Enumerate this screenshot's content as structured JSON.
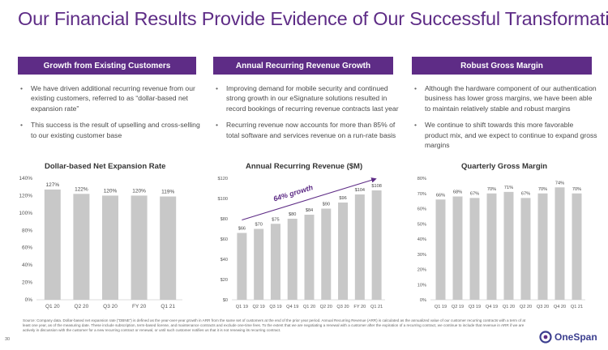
{
  "title": "Our Financial Results Provide Evidence of Our Successful Transformation",
  "panels": [
    {
      "header": "Growth from Existing Customers",
      "bullets": [
        "We have driven additional recurring revenue from our existing customers, referred to as “dollar-based net expansion rate”",
        "This success is the result of upselling and cross-selling to our existing customer base"
      ]
    },
    {
      "header": "Annual Recurring Revenue Growth",
      "bullets": [
        "Improving demand for mobile security and continued strong growth in our eSignature solutions resulted in record bookings of recurring revenue contracts last year",
        "Recurring revenue now accounts for more than 85% of total software and services revenue on a run-rate basis"
      ]
    },
    {
      "header": "Robust Gross Margin",
      "bullets": [
        "Although the hardware component of our authentication business has lower gross margins, we have been able to maintain relatively stable and robust margins",
        "We continue to shift towards this more favorable product mix, and we expect to continue to expand gross margins"
      ]
    }
  ],
  "chart_data": [
    {
      "type": "bar",
      "title": "Dollar-based Net Expansion Rate",
      "categories": [
        "Q1 20",
        "Q2 20",
        "Q3 20",
        "FY 20",
        "Q1 21"
      ],
      "values": [
        127,
        122,
        120,
        120,
        119
      ],
      "labels": [
        "127%",
        "122%",
        "120%",
        "120%",
        "119%"
      ],
      "yticks": [
        "0%",
        "20%",
        "40%",
        "60%",
        "80%",
        "100%",
        "120%",
        "140%"
      ],
      "ylim": [
        0,
        140
      ],
      "color": "#c8c8c8"
    },
    {
      "type": "bar",
      "title": "Annual Recurring Revenue ($M)",
      "categories": [
        "Q1 19",
        "Q2 19",
        "Q3 19",
        "Q4 19",
        "Q1 20",
        "Q2 20",
        "Q3 20",
        "FY 20",
        "Q1 21"
      ],
      "values": [
        66,
        70,
        75,
        80,
        84,
        90,
        96,
        104,
        108
      ],
      "labels": [
        "$66",
        "$70",
        "$75",
        "$80",
        "$84",
        "$90",
        "$96",
        "$104",
        "$108"
      ],
      "yticks": [
        "$0",
        "$20",
        "$40",
        "$60",
        "$80",
        "$100",
        "$120"
      ],
      "ylim": [
        0,
        120
      ],
      "color": "#c8c8c8",
      "annotation": "64% growth",
      "annotation_color": "#5e2c86"
    },
    {
      "type": "bar",
      "title": "Quarterly Gross Margin",
      "categories": [
        "Q1 19",
        "Q2 19",
        "Q3 19",
        "Q4 19",
        "Q1 20",
        "Q2 20",
        "Q3 20",
        "Q4 20",
        "Q1 21"
      ],
      "values": [
        66,
        68,
        67,
        70,
        71,
        67,
        70,
        74,
        70
      ],
      "labels": [
        "66%",
        "68%",
        "67%",
        "70%",
        "71%",
        "67%",
        "70%",
        "74%",
        "70%"
      ],
      "yticks": [
        "0%",
        "10%",
        "20%",
        "30%",
        "40%",
        "50%",
        "60%",
        "70%",
        "80%"
      ],
      "ylim": [
        0,
        80
      ],
      "color": "#c8c8c8"
    }
  ],
  "footnote": "Source: Company data. Dollar-based net expansion rate (“DBNE”) is defined as the year-over-year growth in ARR from the same set of customers at the end of the prior year period. Annual Recurring Revenue (ARR) is calculated as the annualized value of our customer recurring contracts with a term of at least one year, as of the measuring date. These include subscription, term-based license, and maintenance contracts and exclude one-time fees. To the extent that we are negotiating a renewal with a customer after the expiration of a recurring contract, we continue to include that revenue in ARR if we are actively in discussion with the customer for a new recurring contract or renewal, or until such customer notifies us that it is not renewing its recurring contract.",
  "page_number": "30",
  "logo_text": "OneSpan",
  "colors": {
    "brand": "#5e2c86",
    "bar": "#c8c8c8",
    "logo": "#3c3f8f"
  }
}
